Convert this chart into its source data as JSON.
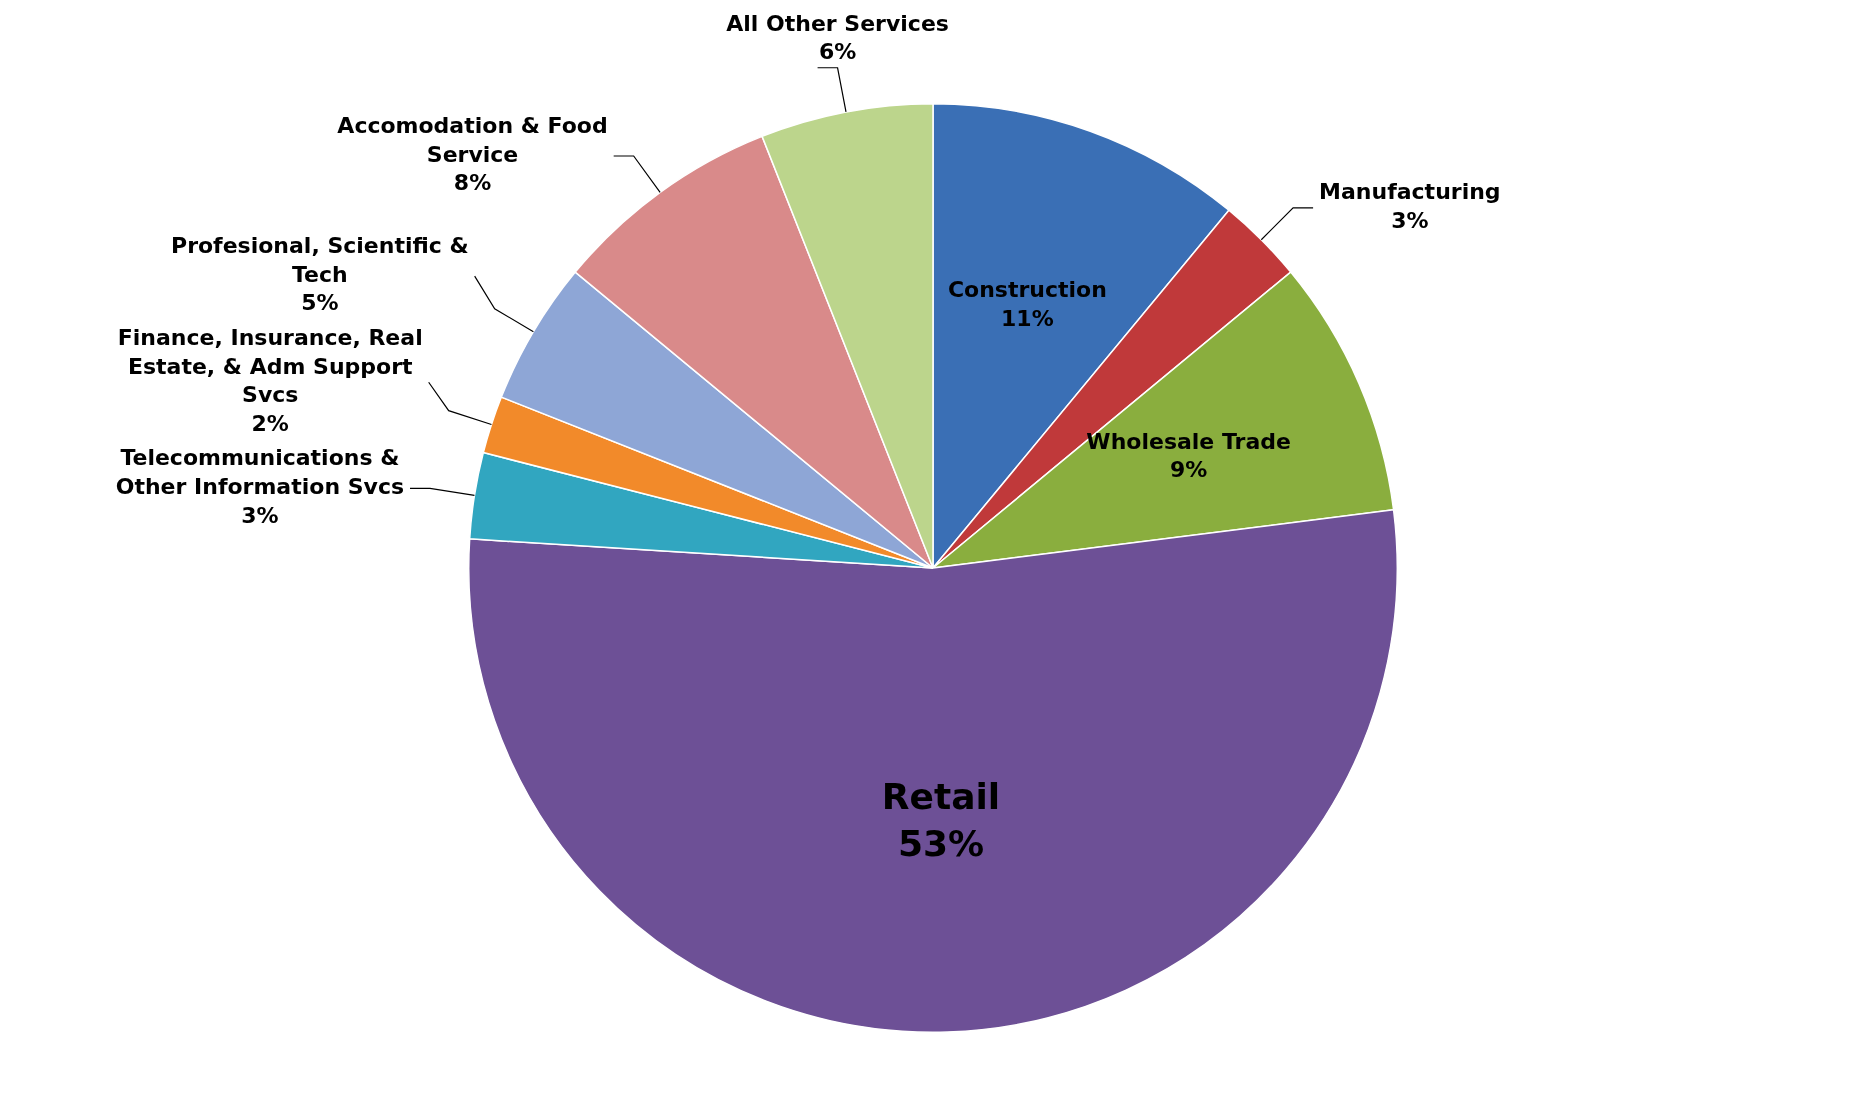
{
  "chart_data": {
    "type": "pie",
    "categories": [
      "Construction",
      "Manufacturing",
      "Wholesale Trade",
      "Retail",
      "Telecommunications & Other Information Svcs",
      "Finance, Insurance, Real Estate, & Adm Support Svcs",
      "Profesional, Scientific & Tech",
      "Accomodation & Food Service",
      "All Other Services"
    ],
    "values": [
      11,
      3,
      9,
      53,
      3,
      2,
      5,
      8,
      6
    ],
    "colors": [
      "#3a6fb5",
      "#c0393a",
      "#8aae3e",
      "#6d5096",
      "#31a6c0",
      "#f28a2a",
      "#8ea6d6",
      "#d98a8a",
      "#bcd58c"
    ],
    "value_labels": [
      "11%",
      "3%",
      "9%",
      "53%",
      "3%",
      "2%",
      "5%",
      "8%",
      "6%"
    ],
    "legend": false
  }
}
